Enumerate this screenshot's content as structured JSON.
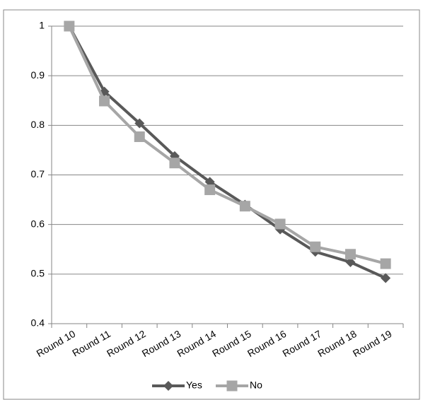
{
  "chart_data": {
    "type": "line",
    "categories": [
      "Round 10",
      "Round 11",
      "Round 12",
      "Round 13",
      "Round 14",
      "Round 15",
      "Round 16",
      "Round 17",
      "Round 18",
      "Round 19"
    ],
    "series": [
      {
        "name": "Yes",
        "color": "#595959",
        "marker": "diamond",
        "values": [
          1,
          0.868,
          0.804,
          0.738,
          0.686,
          0.64,
          0.59,
          0.545,
          0.524,
          0.492
        ]
      },
      {
        "name": "No",
        "color": "#a6a6a6",
        "marker": "square",
        "values": [
          1,
          0.849,
          0.777,
          0.724,
          0.67,
          0.637,
          0.601,
          0.555,
          0.54,
          0.521
        ]
      }
    ],
    "ylim": [
      0.4,
      1
    ],
    "yticks": [
      0.4,
      0.5,
      0.6,
      0.7,
      0.8,
      0.9,
      1
    ],
    "grid": true,
    "legend": "bottom"
  }
}
